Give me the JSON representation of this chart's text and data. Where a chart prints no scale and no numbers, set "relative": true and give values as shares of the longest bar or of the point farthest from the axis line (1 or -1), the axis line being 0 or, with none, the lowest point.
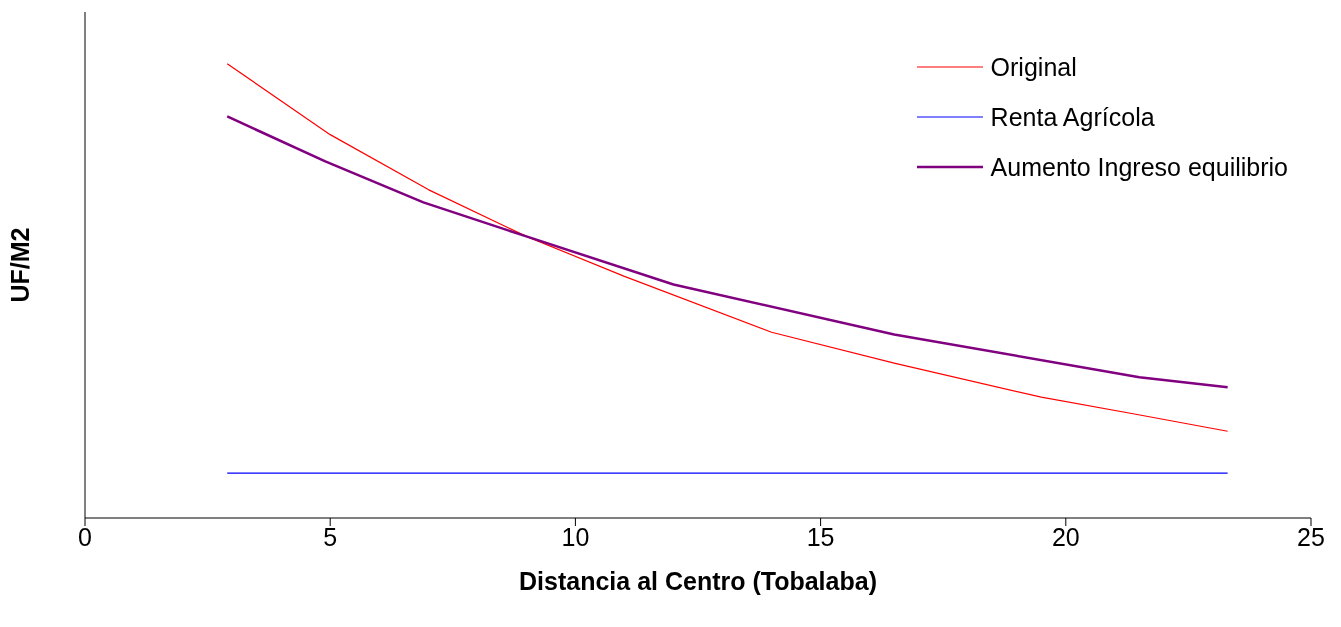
{
  "chart_data": {
    "type": "line",
    "xlabel": "Distancia al Centro (Tobalaba)",
    "ylabel": "UF/M2",
    "relative": true,
    "xlim": [
      0,
      25
    ],
    "xticks": [
      0,
      5,
      10,
      15,
      20,
      25
    ],
    "grid": false,
    "legend": "top right",
    "marker": "none",
    "line_style": "solid",
    "series": [
      {
        "name": "Original",
        "color": "#ff0000",
        "x": [
          2.9,
          5,
          7,
          9,
          11,
          14,
          16.5,
          19.5,
          21.4,
          23.3
        ],
        "values": [
          1.0,
          0.844,
          0.723,
          0.62,
          0.532,
          0.409,
          0.341,
          0.266,
          0.229,
          0.191
        ]
      },
      {
        "name": "Renta Agrícola",
        "color": "#0000ff",
        "x": [
          2.9,
          23.3
        ],
        "values": [
          0.099,
          0.099
        ]
      },
      {
        "name": "Aumento Ingreso equilibrio",
        "color": "#800080",
        "x": [
          2.9,
          4.9,
          6.9,
          9,
          12,
          16.5,
          21.5,
          23.3
        ],
        "values": [
          0.884,
          0.785,
          0.695,
          0.62,
          0.514,
          0.404,
          0.31,
          0.288
        ]
      }
    ]
  }
}
